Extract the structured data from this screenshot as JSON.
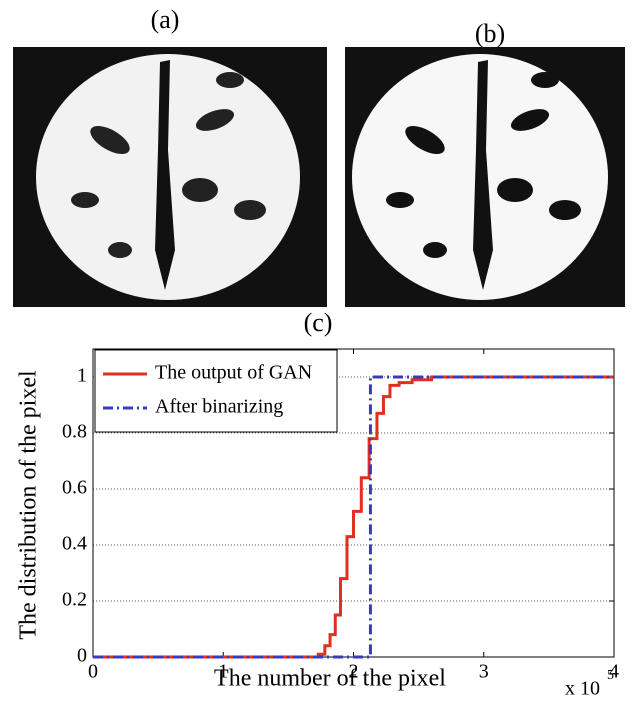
{
  "panels": [
    "(a)",
    "(b)"
  ],
  "chart_data": {
    "type": "line",
    "step": true,
    "panel_label": "(c)",
    "xlabel": "The number of the pixel",
    "ylabel": "The distribution of the pixel",
    "x_scale_label": {
      "base": "x 10",
      "exponent": "5"
    },
    "xlim": [
      0,
      4
    ],
    "xticks": [
      0,
      1,
      2,
      3,
      4
    ],
    "ylim": [
      0,
      1.1
    ],
    "yticks": [
      0,
      0.2,
      0.4,
      0.6,
      0.8,
      1
    ],
    "grid": true,
    "legend": "upper left",
    "series": [
      {
        "name": "The output of GAN",
        "color": "#e03020",
        "dash": "solid",
        "x": [
          0,
          1.73,
          1.78,
          1.82,
          1.86,
          1.9,
          1.95,
          2.0,
          2.06,
          2.12,
          2.18,
          2.23,
          2.28,
          2.35,
          2.45,
          2.6,
          4
        ],
        "values": [
          0,
          0.01,
          0.04,
          0.08,
          0.15,
          0.28,
          0.43,
          0.52,
          0.64,
          0.78,
          0.87,
          0.93,
          0.97,
          0.98,
          0.99,
          1,
          1
        ]
      },
      {
        "name": "After binarizing",
        "color": "#3a3ac0",
        "dash": "dashdot",
        "x": [
          0,
          2.13,
          4
        ],
        "values": [
          0,
          1,
          1
        ]
      }
    ]
  }
}
